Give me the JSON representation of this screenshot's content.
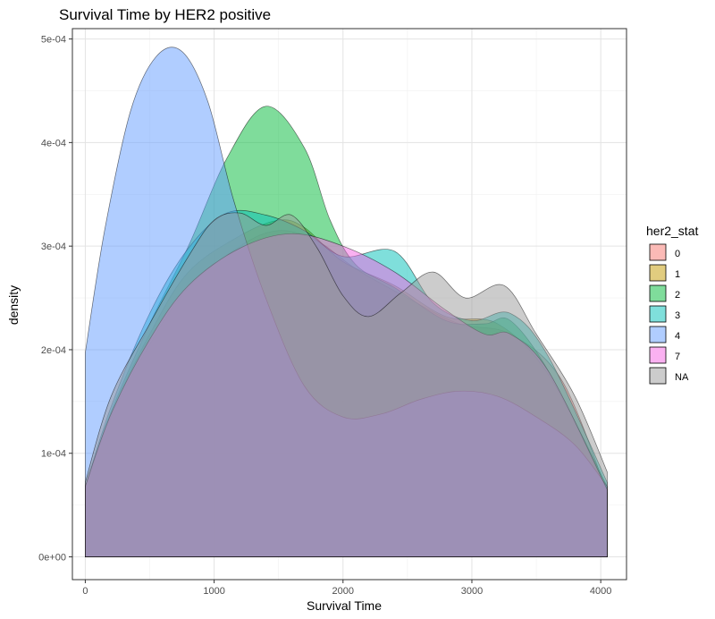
{
  "chart_data": {
    "type": "area",
    "title": "Survival Time by HER2 positive",
    "xlabel": "Survival Time",
    "ylabel": "density",
    "xlim": [
      -100,
      4200
    ],
    "ylim": [
      -2.2e-05,
      0.00051
    ],
    "x_ticks": [
      0,
      1000,
      2000,
      3000,
      4000
    ],
    "x_tick_labels": [
      "0",
      "1000",
      "2000",
      "3000",
      "4000"
    ],
    "y_ticks": [
      0,
      0.0001,
      0.0002,
      0.0003,
      0.0004,
      0.0005
    ],
    "y_tick_labels": [
      "0e+00",
      "1e-04",
      "2e-04",
      "3e-04",
      "4e-04",
      "5e-04"
    ],
    "grid": true,
    "legend": {
      "title": "her2_stat",
      "position": "right"
    },
    "series": [
      {
        "name": "0",
        "color": "#F8766D",
        "x": [
          0,
          200,
          500,
          800,
          1200,
          1500,
          1800,
          2100,
          2500,
          2900,
          3300,
          3700,
          4050
        ],
        "y": [
          6.8e-05,
          0.000135,
          0.000205,
          0.00026,
          0.0003,
          0.000315,
          0.000305,
          0.000278,
          0.00025,
          0.000225,
          0.000215,
          0.00017,
          6.2e-05
        ]
      },
      {
        "name": "1",
        "color": "#C49A00",
        "x": [
          0,
          200,
          500,
          800,
          1200,
          1500,
          1700,
          2000,
          2400,
          2800,
          3200,
          3600,
          4050
        ],
        "y": [
          6.8e-05,
          0.000138,
          0.000215,
          0.000275,
          0.00031,
          0.000325,
          0.000318,
          0.000285,
          0.000262,
          0.000232,
          0.000225,
          0.000175,
          6.5e-05
        ]
      },
      {
        "name": "2",
        "color": "#00BA38",
        "x": [
          0,
          200,
          500,
          800,
          1100,
          1400,
          1700,
          1900,
          2100,
          2400,
          2800,
          3100,
          3300,
          3600,
          4050
        ],
        "y": [
          6.8e-05,
          0.00014,
          0.000225,
          0.0003,
          0.000385,
          0.000435,
          0.000395,
          0.000325,
          0.000282,
          0.00026,
          0.000228,
          0.000225,
          0.000228,
          0.000178,
          6.8e-05
        ]
      },
      {
        "name": "3",
        "color": "#00C0B8",
        "x": [
          0,
          200,
          500,
          800,
          1100,
          1400,
          1700,
          2000,
          2400,
          2700,
          3000,
          3300,
          3600,
          4050
        ],
        "y": [
          6.8e-05,
          0.000145,
          0.000235,
          0.000298,
          0.000332,
          0.00033,
          0.000315,
          0.00029,
          0.000295,
          0.000245,
          0.000228,
          0.000235,
          0.000192,
          7.2e-05
        ]
      },
      {
        "name": "4",
        "color": "#619CFF",
        "x": [
          0,
          150,
          350,
          550,
          750,
          950,
          1150,
          1400,
          1700,
          2000,
          2300,
          2600,
          2900,
          3200,
          3500,
          3800,
          4050
        ],
        "y": [
          0.000197,
          0.000315,
          0.00043,
          0.000483,
          0.000488,
          0.00044,
          0.000345,
          0.00025,
          0.000165,
          0.000135,
          0.000138,
          0.000152,
          0.00016,
          0.000155,
          0.000135,
          0.000108,
          6.8e-05
        ]
      },
      {
        "name": "7",
        "color": "#F564E3",
        "x": [
          0,
          200,
          500,
          800,
          1200,
          1600,
          2000,
          2400,
          2800,
          3100,
          3300,
          3600,
          4050
        ],
        "y": [
          6.8e-05,
          0.000138,
          0.00021,
          0.000262,
          0.000298,
          0.000312,
          0.0003,
          0.000275,
          0.000238,
          0.000215,
          0.000215,
          0.000178,
          6.5e-05
        ]
      },
      {
        "name": "NA",
        "color": "#999999",
        "x": [
          0,
          200,
          500,
          800,
          1000,
          1200,
          1400,
          1600,
          1800,
          2000,
          2200,
          2450,
          2700,
          2950,
          3250,
          3500,
          3800,
          4050
        ],
        "y": [
          7.2e-05,
          0.000155,
          0.000225,
          0.00029,
          0.000325,
          0.000332,
          0.00032,
          0.00033,
          0.000298,
          0.000252,
          0.000232,
          0.000255,
          0.000275,
          0.00025,
          0.000262,
          0.000215,
          0.000155,
          8.2e-05
        ]
      }
    ]
  }
}
